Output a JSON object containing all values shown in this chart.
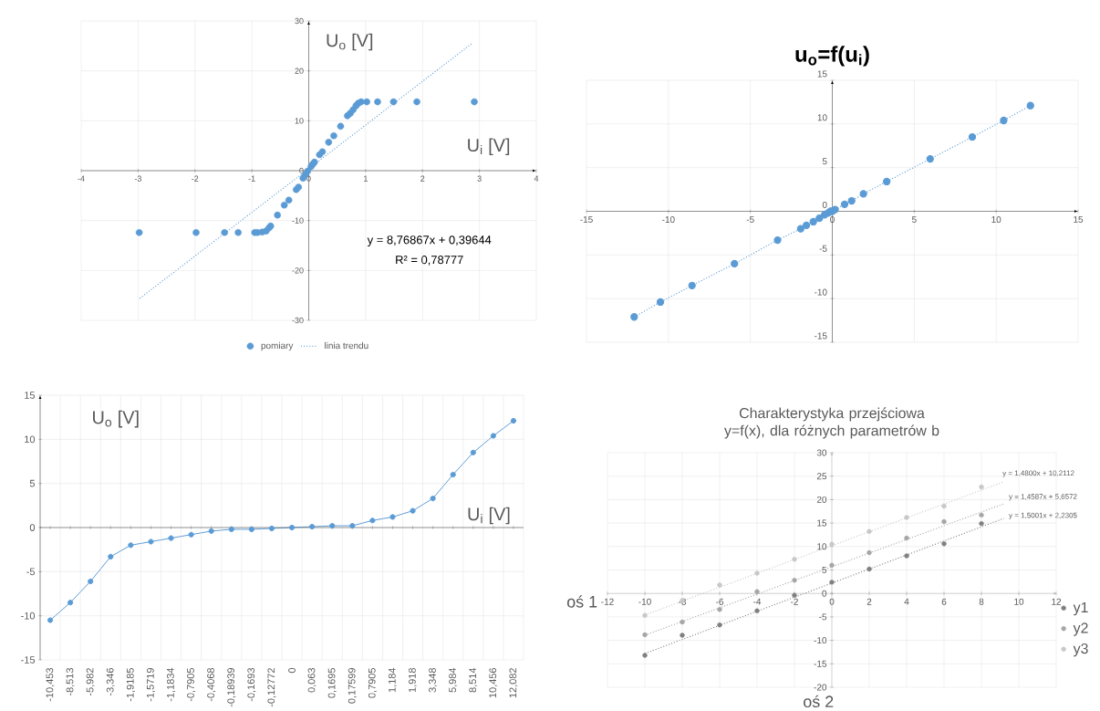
{
  "chart_data": [
    {
      "type": "scatter",
      "xlabel": "U$_{i}$ [V]",
      "ylabel": "U$_{o}$ [V]",
      "xlim": [
        -4,
        4
      ],
      "ylim": [
        -30,
        30
      ],
      "xticks": [
        -4,
        -3,
        -2,
        -1,
        0,
        1,
        2,
        3,
        4
      ],
      "yticks": [
        -30,
        -20,
        -10,
        0,
        10,
        20,
        30
      ],
      "grid": true,
      "legend": "bottom",
      "marker": "circle",
      "annotations": [
        "y = 8,76867x + 0,39644",
        "R² = 0,78777"
      ],
      "series": [
        {
          "name": "pomiary",
          "color": "#5b9bd5",
          "x": [
            -2.98,
            -1.98,
            -1.48,
            -1.24,
            -0.95,
            -0.9,
            -0.82,
            -0.75,
            -0.7,
            -0.67,
            -0.55,
            -0.43,
            -0.35,
            -0.22,
            -0.18,
            -0.1,
            -0.06,
            -0.02,
            0.04,
            0.07,
            0.1,
            0.19,
            0.24,
            0.35,
            0.44,
            0.56,
            0.68,
            0.73,
            0.78,
            0.83,
            0.87,
            0.92,
            1.02,
            1.21,
            1.49,
            1.9,
            2.91
          ],
          "values": [
            -12.4,
            -12.4,
            -12.4,
            -12.4,
            -12.4,
            -12.4,
            -12.3,
            -12.1,
            -11.5,
            -11.1,
            -8.9,
            -6.9,
            -5.9,
            -3.8,
            -3.3,
            -1.5,
            -0.8,
            -0.1,
            0.8,
            1.3,
            1.7,
            3.2,
            3.8,
            5.7,
            7.0,
            8.9,
            11.0,
            11.5,
            12.2,
            13.0,
            13.5,
            13.8,
            13.8,
            13.8,
            13.8,
            13.8,
            13.8
          ]
        },
        {
          "name": "linia trendu",
          "type": "line",
          "marker": "none",
          "line_style": "dotted",
          "color": "#5b9bd5",
          "x": [
            -2.97,
            2.88
          ],
          "values": [
            -25.6,
            25.6
          ]
        }
      ]
    },
    {
      "type": "line",
      "title": "u$_{o}$=f(u$_{i}$)",
      "xlim": [
        -15,
        15
      ],
      "ylim": [
        -15,
        15
      ],
      "xticks": [
        -15,
        -10,
        -5,
        0,
        5,
        10,
        15
      ],
      "yticks": [
        -15,
        -10,
        -5,
        0,
        5,
        10,
        15
      ],
      "grid": true,
      "marker": "circle",
      "line_style": "dotted",
      "series": [
        {
          "color": "#5b9bd5",
          "x": [
            -12.09,
            -10.49,
            -8.56,
            -5.97,
            -3.34,
            -1.93,
            -1.58,
            -1.16,
            -0.79,
            -0.47,
            -0.26,
            -0.11,
            0,
            0.17,
            0.75,
            1.18,
            1.9,
            3.32,
            5.97,
            8.54,
            10.46,
            12.09
          ],
          "values": [
            -12.1,
            -10.4,
            -8.5,
            -6.0,
            -3.3,
            -2.0,
            -1.6,
            -1.2,
            -0.8,
            -0.4,
            -0.2,
            0.0,
            0.0,
            0.2,
            0.8,
            1.2,
            2.0,
            3.4,
            6.0,
            8.5,
            10.4,
            12.1
          ]
        }
      ]
    },
    {
      "type": "line",
      "xlabel": "U$_{i}$ [V]",
      "ylabel": "U$_{o}$ [V]",
      "ylim": [
        -15,
        15
      ],
      "yticks": [
        -15,
        -10,
        -5,
        0,
        5,
        10,
        15
      ],
      "grid": true,
      "marker": "circle",
      "categories": [
        "-10,453",
        "-8,513",
        "-5,982",
        "-3,346",
        "-1,9185",
        "-1,5719",
        "-1,1834",
        "-0,7905",
        "-0,4068",
        "-0,18939",
        "-0,1693",
        "-0,12772",
        "0",
        "0,063",
        "0,1695",
        "0,17599",
        "0,7905",
        "1,184",
        "1,918",
        "3,348",
        "5,984",
        "8,514",
        "10,456",
        "12,082"
      ],
      "series": [
        {
          "color": "#5b9bd5",
          "values": [
            -10.5,
            -8.5,
            -6.1,
            -3.3,
            -2.0,
            -1.6,
            -1.2,
            -0.8,
            -0.4,
            -0.2,
            -0.2,
            -0.1,
            0,
            0.1,
            0.2,
            0.2,
            0.8,
            1.2,
            1.9,
            3.3,
            6.0,
            8.5,
            10.4,
            12.1
          ]
        }
      ]
    },
    {
      "type": "scatter",
      "title": "Charakterystyka przejściowa y=f(x), dla różnych parametrów b",
      "xlabel": "oś 2",
      "ylabel": "oś 1",
      "xlim": [
        -12,
        12
      ],
      "ylim": [
        -20,
        30
      ],
      "xticks": [
        -12,
        -10,
        -8,
        -6,
        -4,
        -2,
        0,
        2,
        4,
        6,
        8,
        10,
        12
      ],
      "yticks": [
        -20,
        -15,
        -10,
        -5,
        0,
        5,
        10,
        15,
        20,
        25,
        30
      ],
      "grid": true,
      "legend": "right",
      "marker": "circle",
      "annotations": [
        "y = 1,4800x  + 10,2112",
        "y = 1,4587x  + 5,6572",
        "y = 1,5001x  + 2,2305"
      ],
      "series": [
        {
          "name": "y1",
          "color": "#808080",
          "x": [
            -10,
            -8,
            -6,
            -4,
            -2,
            0,
            2,
            4,
            6,
            8
          ],
          "values": [
            -13.2,
            -8.9,
            -6.7,
            -3.7,
            -0.4,
            2.4,
            5.2,
            8.0,
            10.6,
            14.9
          ]
        },
        {
          "name": "y2",
          "color": "#a6a6a6",
          "x": [
            -10,
            -8,
            -6,
            -4,
            -2,
            0,
            2,
            4,
            6,
            8
          ],
          "values": [
            -8.8,
            -6.1,
            -3.4,
            0.4,
            2.8,
            6.0,
            8.7,
            11.8,
            15.3,
            16.7
          ]
        },
        {
          "name": "y3",
          "color": "#c8c8c8",
          "x": [
            -10,
            -8,
            -6,
            -4,
            -2,
            0,
            2,
            4,
            6,
            8
          ],
          "values": [
            -4.7,
            -1.5,
            1.8,
            4.3,
            7.3,
            10.5,
            13.2,
            16.2,
            18.6,
            22.7
          ]
        },
        {
          "type": "line",
          "marker": "none",
          "line_style": "dotted",
          "color": "#808080",
          "x": [
            -10,
            9.2
          ],
          "values": [
            -12.8,
            16.0
          ]
        },
        {
          "type": "line",
          "marker": "none",
          "line_style": "dotted",
          "color": "#a6a6a6",
          "x": [
            -10,
            9.2
          ],
          "values": [
            -8.9,
            19.1
          ]
        },
        {
          "type": "line",
          "marker": "none",
          "line_style": "dotted",
          "color": "#c8c8c8",
          "x": [
            -10,
            9.2
          ],
          "values": [
            -4.6,
            23.8
          ]
        }
      ]
    }
  ]
}
